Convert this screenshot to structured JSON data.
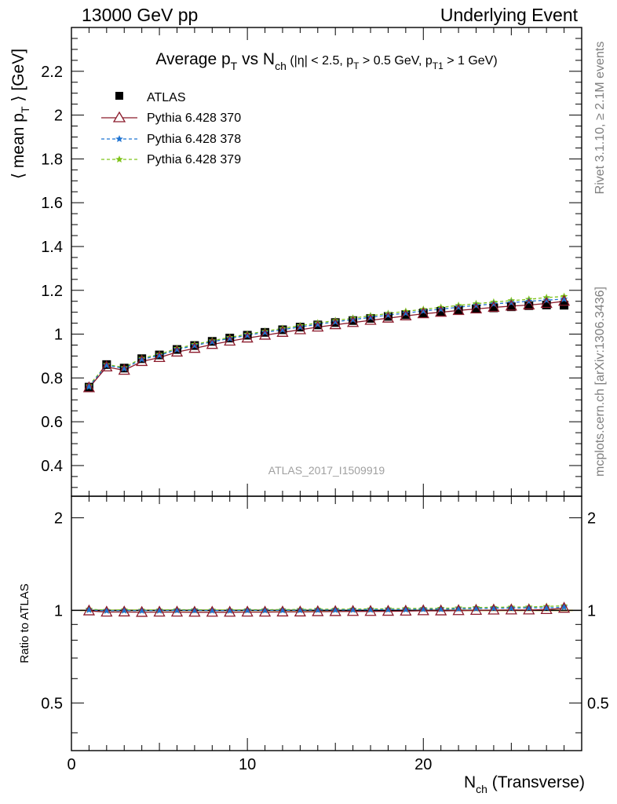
{
  "header": {
    "left": "13000 GeV pp",
    "right": "Underlying Event"
  },
  "side": {
    "rivet": "Rivet 3.1.10, ≥ 2.1M events",
    "mcplots": "mcplots.cern.ch [arXiv:1306.3436]"
  },
  "analysis_label": "ATLAS_2017_I1509919",
  "colors": {
    "data": "#000000",
    "pythia370": "#8b1a2b",
    "pythia378": "#1e73d2",
    "pythia379": "#7ec31a"
  },
  "chart_data": [
    {
      "type": "scatter",
      "title": "Average pT vs Nch (|η| < 2.5, pT > 0.5 GeV, pT1 > 1 GeV)",
      "title_parts": {
        "a": "Average p",
        "a_sub": "T",
        "b": " vs N",
        "b_sub": "ch",
        "c": " (|η| < 2.5, p",
        "c_sub": "T",
        "d": " > 0.5 GeV, p",
        "d_sub": "T1",
        "e": " > 1 GeV)"
      },
      "ylabel": "⟨ mean pT ⟩ [GeV]",
      "ylabel_parts": {
        "a": "⟨ mean p",
        "sub": "T",
        "b": " ⟩ [GeV]"
      },
      "xlabel": "Nch (Transverse)",
      "xlabel_parts": {
        "a": "N",
        "sub": "ch",
        "b": " (Transverse)"
      },
      "xlim": [
        0,
        29
      ],
      "ylim": [
        0.26,
        2.4
      ],
      "xticks": [
        0,
        10,
        20
      ],
      "yticks": [
        0.4,
        0.6,
        0.8,
        1,
        1.2,
        1.4,
        1.6,
        1.8,
        2,
        2.2
      ],
      "ytick_labels": [
        "0.4",
        "0.6",
        "0.8",
        "1",
        "1.2",
        "1.4",
        "1.6",
        "1.8",
        "2",
        "2.2"
      ],
      "legend_position": "top-left",
      "x": [
        1,
        2,
        3,
        4,
        5,
        6,
        7,
        8,
        9,
        10,
        11,
        12,
        13,
        14,
        15,
        16,
        17,
        18,
        19,
        20,
        21,
        22,
        23,
        24,
        25,
        26,
        27,
        28
      ],
      "series": [
        {
          "name": "ATLAS",
          "key": "data",
          "marker": "square",
          "line": "none",
          "values": [
            0.758,
            0.861,
            0.845,
            0.888,
            0.905,
            0.93,
            0.948,
            0.967,
            0.982,
            0.995,
            1.008,
            1.02,
            1.032,
            1.042,
            1.053,
            1.062,
            1.072,
            1.081,
            1.089,
            1.096,
            1.104,
            1.11,
            1.115,
            1.12,
            1.125,
            1.13,
            1.133,
            1.132
          ]
        },
        {
          "name": "Pythia 6.428 370",
          "key": "pythia370",
          "marker": "triangle-open",
          "line": "solid",
          "values": [
            0.755,
            0.85,
            0.835,
            0.875,
            0.893,
            0.918,
            0.935,
            0.953,
            0.968,
            0.982,
            0.995,
            1.008,
            1.02,
            1.032,
            1.043,
            1.053,
            1.063,
            1.073,
            1.083,
            1.093,
            1.1,
            1.108,
            1.115,
            1.122,
            1.128,
            1.133,
            1.14,
            1.15
          ]
        },
        {
          "name": "Pythia 6.428 378",
          "key": "pythia378",
          "marker": "star",
          "line": "dashed",
          "values": [
            0.76,
            0.858,
            0.843,
            0.885,
            0.903,
            0.93,
            0.948,
            0.965,
            0.98,
            0.995,
            1.008,
            1.02,
            1.033,
            1.045,
            1.056,
            1.066,
            1.077,
            1.087,
            1.096,
            1.106,
            1.114,
            1.123,
            1.131,
            1.138,
            1.144,
            1.15,
            1.155,
            1.16
          ]
        },
        {
          "name": "Pythia 6.428 379",
          "key": "pythia379",
          "marker": "star",
          "line": "dashed",
          "values": [
            0.765,
            0.862,
            0.848,
            0.89,
            0.908,
            0.935,
            0.953,
            0.97,
            0.985,
            1.0,
            1.013,
            1.026,
            1.039,
            1.051,
            1.062,
            1.073,
            1.084,
            1.094,
            1.104,
            1.113,
            1.122,
            1.131,
            1.139,
            1.146,
            1.153,
            1.159,
            1.167,
            1.172
          ]
        }
      ]
    },
    {
      "type": "line",
      "ylabel": "Ratio to ATLAS",
      "xlim": [
        0,
        29
      ],
      "ylim": [
        0.35,
        2.35
      ],
      "yticks": [
        0.5,
        1,
        2
      ],
      "ytick_labels": [
        "0.5",
        "1",
        "2"
      ],
      "reference": 1,
      "series": [
        {
          "name": "Pythia 6.428 370",
          "key": "pythia370",
          "values": [
            0.996,
            0.987,
            0.988,
            0.985,
            0.987,
            0.987,
            0.986,
            0.986,
            0.986,
            0.987,
            0.987,
            0.988,
            0.988,
            0.99,
            0.991,
            0.992,
            0.992,
            0.993,
            0.994,
            0.997,
            0.996,
            0.998,
            1.0,
            1.002,
            1.003,
            1.003,
            1.006,
            1.016
          ]
        },
        {
          "name": "Pythia 6.428 378",
          "key": "pythia378",
          "values": [
            1.003,
            0.997,
            0.998,
            0.997,
            0.998,
            1.0,
            1.0,
            0.998,
            0.998,
            1.0,
            1.0,
            1.0,
            1.001,
            1.003,
            1.003,
            1.004,
            1.005,
            1.006,
            1.006,
            1.009,
            1.009,
            1.012,
            1.014,
            1.016,
            1.017,
            1.018,
            1.019,
            1.025
          ]
        },
        {
          "name": "Pythia 6.428 379",
          "key": "pythia379",
          "values": [
            1.009,
            1.001,
            1.004,
            1.002,
            1.003,
            1.005,
            1.005,
            1.003,
            1.003,
            1.005,
            1.005,
            1.006,
            1.007,
            1.009,
            1.009,
            1.01,
            1.011,
            1.012,
            1.014,
            1.015,
            1.016,
            1.019,
            1.022,
            1.023,
            1.025,
            1.026,
            1.03,
            1.035
          ]
        }
      ]
    }
  ]
}
